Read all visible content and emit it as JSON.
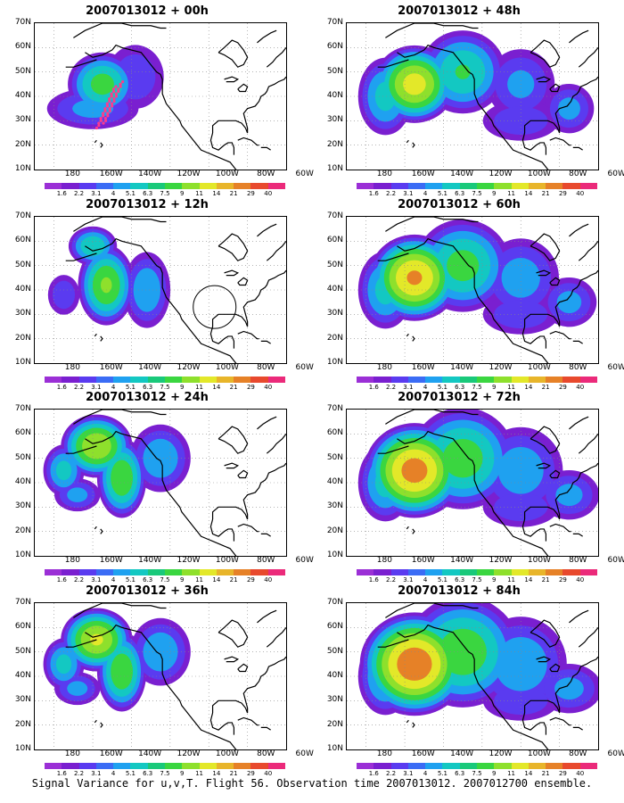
{
  "panels": [
    {
      "title": "2007013012 + 00h",
      "peak": [
        10,
        45
      ],
      "spread": 0.45,
      "intensity": 0.55,
      "pattern": "init"
    },
    {
      "title": "2007013012 + 12h",
      "peak": [
        12,
        42
      ],
      "spread": 0.6,
      "intensity": 0.62,
      "pattern": "early"
    },
    {
      "title": "2007013012 + 24h",
      "peak": [
        10,
        48
      ],
      "spread": 0.75,
      "intensity": 0.7,
      "pattern": "mid"
    },
    {
      "title": "2007013012 + 36h",
      "peak": [
        14,
        46
      ],
      "spread": 0.85,
      "intensity": 0.72,
      "pattern": "mid"
    },
    {
      "title": "2007013012 + 48h",
      "peak": [
        12,
        44
      ],
      "spread": 0.95,
      "intensity": 0.75,
      "pattern": "late"
    },
    {
      "title": "2007013012 + 60h",
      "peak": [
        13,
        44
      ],
      "spread": 1.05,
      "intensity": 0.82,
      "pattern": "late"
    },
    {
      "title": "2007013012 + 72h",
      "peak": [
        13,
        44
      ],
      "spread": 1.15,
      "intensity": 0.85,
      "pattern": "late"
    },
    {
      "title": "2007013012 + 84h",
      "peak": [
        18,
        40
      ],
      "spread": 1.25,
      "intensity": 0.88,
      "pattern": "late"
    }
  ],
  "axes": {
    "y_labels": [
      "70N",
      "60N",
      "50N",
      "40N",
      "30N",
      "20N",
      "10N"
    ],
    "x_labels": [
      "180",
      "160W",
      "140W",
      "120W",
      "100W",
      "80W",
      "60W"
    ]
  },
  "colorbar": {
    "labels": [
      "1.6",
      "2.2",
      "3.1",
      "4",
      "5.1",
      "6.3",
      "7.5",
      "9",
      "11",
      "14",
      "21",
      "29",
      "40"
    ],
    "colors": [
      "#9b2fd6",
      "#7a1fd0",
      "#5a3bf0",
      "#3b6cf5",
      "#1fa1f0",
      "#13c8c2",
      "#19c97a",
      "#3ad640",
      "#8ee02c",
      "#e3e829",
      "#e8b52a",
      "#e68127",
      "#e8492d",
      "#eb2a7a"
    ]
  },
  "caption": "Signal Variance for u,v,T. Flight 56. Observation time 2007013012. 2007012700 ensemble."
}
